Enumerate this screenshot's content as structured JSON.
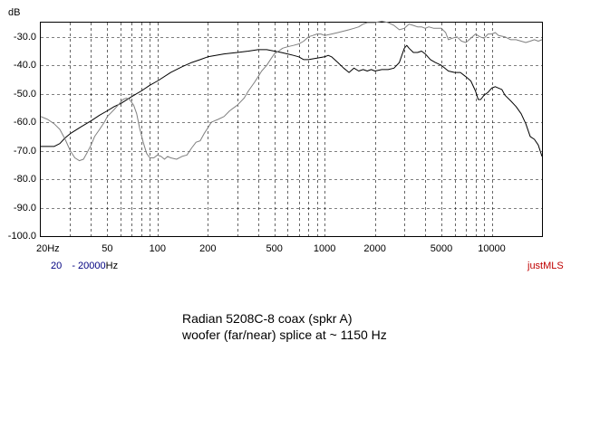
{
  "chart_data": {
    "type": "line",
    "ylabel": "dB",
    "xscale": "log",
    "xlim": [
      20,
      20000
    ],
    "ylim": [
      -100,
      -25
    ],
    "grid": true,
    "x_tick_labels": [
      "20Hz",
      "50",
      "100",
      "200",
      "500",
      "1000",
      "2000",
      "5000",
      "10000"
    ],
    "x_ticks": [
      20,
      50,
      100,
      200,
      500,
      1000,
      2000,
      5000,
      10000
    ],
    "y_tick_labels": [
      "-30.0",
      "-40.0",
      "-50.0",
      "-60.0",
      "-70.0",
      "-80.0",
      "-90.0",
      "-100.0"
    ],
    "y_ticks": [
      -30,
      -40,
      -50,
      -60,
      -70,
      -80,
      -90,
      -100
    ],
    "range_from": "20",
    "range_sep": "-",
    "range_to": "20000",
    "range_unit": "Hz",
    "watermark": "justMLS",
    "caption_line1": "Radian 5208C-8 coax  (spkr A)",
    "caption_line2": "woofer (far/near) splice at ~ 1150 Hz",
    "colors": {
      "curve_a": "#000000",
      "curve_b": "#808080",
      "range_text": "#000080",
      "watermark": "#c00000"
    },
    "series": [
      {
        "color": "#000000",
        "points": [
          [
            20,
            -68.5
          ],
          [
            24,
            -68.5
          ],
          [
            26,
            -67.5
          ],
          [
            28,
            -65.5
          ],
          [
            30,
            -64
          ],
          [
            35,
            -61.5
          ],
          [
            40,
            -59.5
          ],
          [
            45,
            -57.5
          ],
          [
            50,
            -56
          ],
          [
            55,
            -54.5
          ],
          [
            60,
            -53.5
          ],
          [
            70,
            -51
          ],
          [
            80,
            -49
          ],
          [
            90,
            -47
          ],
          [
            100,
            -45.5
          ],
          [
            120,
            -42.5
          ],
          [
            140,
            -40.5
          ],
          [
            160,
            -39
          ],
          [
            180,
            -38
          ],
          [
            200,
            -37
          ],
          [
            250,
            -36
          ],
          [
            300,
            -35.5
          ],
          [
            350,
            -35
          ],
          [
            400,
            -34.5
          ],
          [
            450,
            -34.5
          ],
          [
            500,
            -35
          ],
          [
            550,
            -35.5
          ],
          [
            600,
            -36
          ],
          [
            650,
            -36.5
          ],
          [
            700,
            -37
          ],
          [
            750,
            -38
          ],
          [
            800,
            -38
          ],
          [
            900,
            -37.5
          ],
          [
            1000,
            -37
          ],
          [
            1050,
            -36.5
          ],
          [
            1100,
            -37
          ],
          [
            1200,
            -39
          ],
          [
            1300,
            -41
          ],
          [
            1400,
            -42.5
          ],
          [
            1500,
            -41
          ],
          [
            1600,
            -42
          ],
          [
            1700,
            -41.5
          ],
          [
            1800,
            -42
          ],
          [
            1900,
            -41.5
          ],
          [
            2000,
            -42
          ],
          [
            2200,
            -41.5
          ],
          [
            2400,
            -41.5
          ],
          [
            2600,
            -41
          ],
          [
            2800,
            -39
          ],
          [
            3000,
            -34
          ],
          [
            3100,
            -33
          ],
          [
            3200,
            -34
          ],
          [
            3400,
            -35.5
          ],
          [
            3600,
            -35.5
          ],
          [
            3800,
            -35
          ],
          [
            4000,
            -36
          ],
          [
            4300,
            -38
          ],
          [
            4600,
            -39
          ],
          [
            5000,
            -40
          ],
          [
            5500,
            -42
          ],
          [
            6000,
            -42.5
          ],
          [
            6500,
            -42.5
          ],
          [
            7000,
            -44
          ],
          [
            7500,
            -45.5
          ],
          [
            8000,
            -49
          ],
          [
            8300,
            -52
          ],
          [
            8600,
            -52
          ],
          [
            9000,
            -50.5
          ],
          [
            9500,
            -49.5
          ],
          [
            10000,
            -48
          ],
          [
            10500,
            -47.5
          ],
          [
            11000,
            -48
          ],
          [
            11500,
            -48.5
          ],
          [
            12000,
            -50.5
          ],
          [
            13000,
            -52.5
          ],
          [
            14000,
            -54.5
          ],
          [
            15000,
            -57
          ],
          [
            16000,
            -60.5
          ],
          [
            17000,
            -65
          ],
          [
            18000,
            -66
          ],
          [
            19000,
            -68
          ],
          [
            20000,
            -72
          ]
        ]
      },
      {
        "color": "#808080",
        "points": [
          [
            20,
            -58
          ],
          [
            22,
            -59
          ],
          [
            24,
            -60.5
          ],
          [
            26,
            -62.5
          ],
          [
            28,
            -66
          ],
          [
            30,
            -70
          ],
          [
            32,
            -72.5
          ],
          [
            34,
            -73.5
          ],
          [
            36,
            -73
          ],
          [
            38,
            -70.5
          ],
          [
            40,
            -68
          ],
          [
            42,
            -65
          ],
          [
            45,
            -62.5
          ],
          [
            48,
            -60
          ],
          [
            50,
            -58
          ],
          [
            52,
            -57
          ],
          [
            55,
            -55.5
          ],
          [
            58,
            -54
          ],
          [
            60,
            -53
          ],
          [
            62,
            -52
          ],
          [
            65,
            -51.5
          ],
          [
            68,
            -52
          ],
          [
            72,
            -54
          ],
          [
            75,
            -57
          ],
          [
            78,
            -62
          ],
          [
            82,
            -67
          ],
          [
            86,
            -71
          ],
          [
            90,
            -72.5
          ],
          [
            95,
            -72.5
          ],
          [
            100,
            -71.5
          ],
          [
            105,
            -72
          ],
          [
            110,
            -73
          ],
          [
            115,
            -72
          ],
          [
            120,
            -72.5
          ],
          [
            130,
            -73
          ],
          [
            140,
            -72
          ],
          [
            150,
            -71.5
          ],
          [
            160,
            -69
          ],
          [
            170,
            -67
          ],
          [
            180,
            -66.5
          ],
          [
            190,
            -64
          ],
          [
            200,
            -62
          ],
          [
            210,
            -60
          ],
          [
            230,
            -59
          ],
          [
            250,
            -58
          ],
          [
            270,
            -56
          ],
          [
            300,
            -54
          ],
          [
            330,
            -51.5
          ],
          [
            350,
            -49
          ],
          [
            380,
            -46
          ],
          [
            400,
            -44
          ],
          [
            420,
            -42
          ],
          [
            450,
            -40
          ],
          [
            480,
            -37.5
          ],
          [
            500,
            -36
          ],
          [
            530,
            -35
          ],
          [
            560,
            -34
          ],
          [
            600,
            -33.5
          ],
          [
            650,
            -33
          ],
          [
            700,
            -32.5
          ],
          [
            750,
            -31.5
          ],
          [
            800,
            -30
          ],
          [
            850,
            -29.5
          ],
          [
            900,
            -29
          ],
          [
            950,
            -29
          ],
          [
            1000,
            -29.5
          ],
          [
            1100,
            -29
          ],
          [
            1200,
            -28.5
          ],
          [
            1300,
            -28
          ],
          [
            1400,
            -27.5
          ],
          [
            1500,
            -27
          ],
          [
            1600,
            -26.5
          ],
          [
            1700,
            -25.5
          ],
          [
            1800,
            -25
          ],
          [
            2000,
            -25
          ],
          [
            2200,
            -24.5
          ],
          [
            2400,
            -25
          ],
          [
            2600,
            -26
          ],
          [
            2800,
            -27.5
          ],
          [
            3000,
            -27
          ],
          [
            3200,
            -25.5
          ],
          [
            3400,
            -26
          ],
          [
            3600,
            -26.5
          ],
          [
            3800,
            -26.5
          ],
          [
            4000,
            -27
          ],
          [
            4200,
            -26.5
          ],
          [
            4500,
            -27
          ],
          [
            5000,
            -27
          ],
          [
            5300,
            -28.5
          ],
          [
            5500,
            -31
          ],
          [
            5800,
            -30.5
          ],
          [
            6200,
            -30
          ],
          [
            6600,
            -31.5
          ],
          [
            7000,
            -32
          ],
          [
            7500,
            -30.5
          ],
          [
            8000,
            -29
          ],
          [
            8500,
            -30
          ],
          [
            9000,
            -30.5
          ],
          [
            9500,
            -29
          ],
          [
            10000,
            -29
          ],
          [
            10500,
            -28.5
          ],
          [
            11000,
            -29.5
          ],
          [
            12000,
            -30
          ],
          [
            13000,
            -31
          ],
          [
            14000,
            -31
          ],
          [
            15000,
            -31.5
          ],
          [
            16000,
            -32
          ],
          [
            17000,
            -31.5
          ],
          [
            18000,
            -31
          ],
          [
            19000,
            -31.5
          ],
          [
            20000,
            -31
          ]
        ]
      }
    ]
  }
}
